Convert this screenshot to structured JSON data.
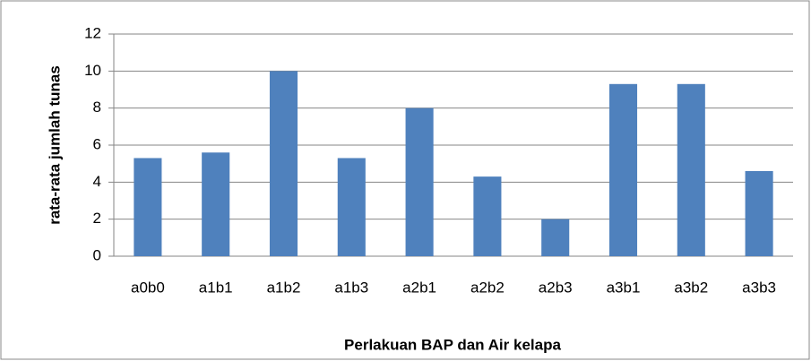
{
  "chart_data": {
    "type": "bar",
    "categories": [
      "a0b0",
      "a1b1",
      "a1b2",
      "a1b3",
      "a2b1",
      "a2b2",
      "a2b3",
      "a3b1",
      "a3b2",
      "a3b3"
    ],
    "values": [
      5.3,
      5.6,
      10,
      5.3,
      8,
      4.3,
      2,
      9.3,
      9.3,
      4.6
    ],
    "color": "#4f81bd",
    "ylabel": "rata-rata jumlah tunas",
    "xlabel": "Perlakuan BAP dan Air kelapa",
    "ylim": [
      0,
      12
    ],
    "yticks": [
      0,
      2,
      4,
      6,
      8,
      10,
      12
    ],
    "grid": true
  }
}
